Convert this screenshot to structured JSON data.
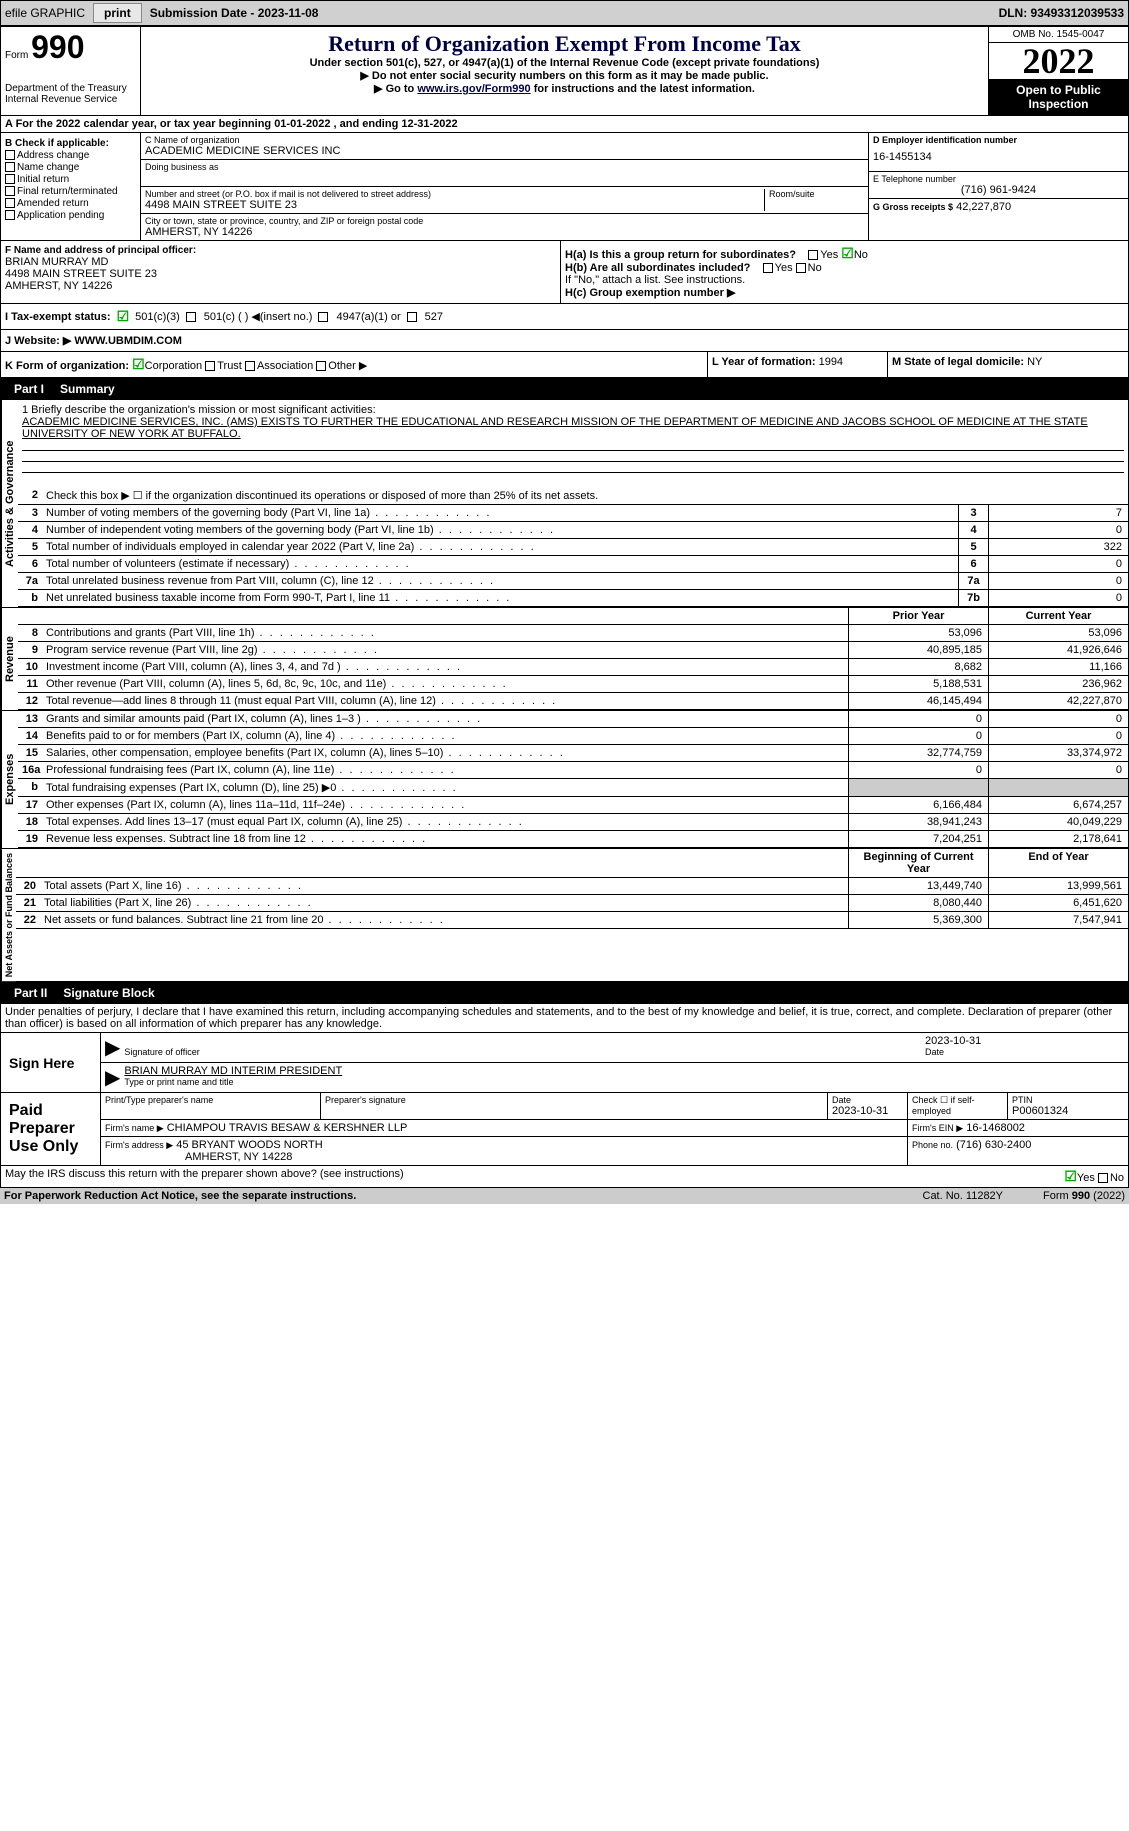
{
  "topbar": {
    "efile": "efile GRAPHIC",
    "print": "print",
    "sub_label": "Submission Date - 2023-11-08",
    "dln": "DLN: 93493312039533"
  },
  "header": {
    "form_prefix": "Form",
    "form_no": "990",
    "dept": "Department of the Treasury",
    "irs": "Internal Revenue Service",
    "title": "Return of Organization Exempt From Income Tax",
    "sub": "Under section 501(c), 527, or 4947(a)(1) of the Internal Revenue Code (except private foundations)",
    "ssn": "▶ Do not enter social security numbers on this form as it may be made public.",
    "goto": "▶ Go to",
    "goto_link": "www.irs.gov/Form990",
    "goto_suffix": "for instructions and the latest information.",
    "omb": "OMB No. 1545-0047",
    "year": "2022",
    "open": "Open to Public Inspection"
  },
  "cal": "A For the 2022 calendar year, or tax year beginning 01-01-2022    , and ending 12-31-2022",
  "checkb": {
    "label": "B Check if applicable:",
    "items": [
      "Address change",
      "Name change",
      "Initial return",
      "Final return/terminated",
      "Amended return",
      "Application pending"
    ]
  },
  "org": {
    "c_label": "C Name of organization",
    "name": "ACADEMIC MEDICINE SERVICES INC",
    "dba_label": "Doing business as",
    "addr_label": "Number and street (or P.O. box if mail is not delivered to street address)",
    "room_label": "Room/suite",
    "addr": "4498 MAIN STREET SUITE 23",
    "city_label": "City or town, state or province, country, and ZIP or foreign postal code",
    "city": "AMHERST, NY  14226"
  },
  "right": {
    "d_label": "D Employer identification number",
    "ein": "16-1455134",
    "e_label": "E Telephone number",
    "phone": "(716) 961-9424",
    "g_label": "G Gross receipts $",
    "gross": "42,227,870"
  },
  "officer": {
    "f_label": "F Name and address of principal officer:",
    "name": "BRIAN MURRAY MD",
    "addr1": "4498 MAIN STREET SUITE 23",
    "addr2": "AMHERST, NY  14226"
  },
  "h": {
    "a": "H(a)  Is this a group return for subordinates?",
    "b": "H(b)  Are all subordinates included?",
    "b_note": "If \"No,\" attach a list. See instructions.",
    "c": "H(c)  Group exemption number ▶",
    "yes": "Yes",
    "no": "No"
  },
  "status": {
    "i_label": "I    Tax-exempt status:",
    "c3": "501(c)(3)",
    "c": "501(c) (  ) ◀(insert no.)",
    "a1": "4947(a)(1) or",
    "s527": "527"
  },
  "website": {
    "j_label": "J   Website: ▶",
    "val": "WWW.UBMDIM.COM"
  },
  "formorg": {
    "k_label": "K Form of organization:",
    "corp": "Corporation",
    "trust": "Trust",
    "assoc": "Association",
    "other": "Other ▶",
    "l_label": "L Year of formation:",
    "l_val": "1994",
    "m_label": "M State of legal domicile:",
    "m_val": "NY"
  },
  "part1": {
    "label": "Part I",
    "title": "Summary"
  },
  "mission": {
    "q1": "1   Briefly describe the organization's mission or most significant activities:",
    "text": "ACADEMIC MEDICINE SERVICES, INC. (AMS) EXISTS TO FURTHER THE EDUCATIONAL AND RESEARCH MISSION OF THE DEPARTMENT OF MEDICINE AND JACOBS SCHOOL OF MEDICINE AT THE STATE UNIVERSITY OF NEW YORK AT BUFFALO."
  },
  "gov_rows": [
    {
      "n": "2",
      "t": "Check this box ▶ ☐ if the organization discontinued its operations or disposed of more than 25% of its net assets.",
      "box": "",
      "v": ""
    },
    {
      "n": "3",
      "t": "Number of voting members of the governing body (Part VI, line 1a)",
      "box": "3",
      "v": "7"
    },
    {
      "n": "4",
      "t": "Number of independent voting members of the governing body (Part VI, line 1b)",
      "box": "4",
      "v": "0"
    },
    {
      "n": "5",
      "t": "Total number of individuals employed in calendar year 2022 (Part V, line 2a)",
      "box": "5",
      "v": "322"
    },
    {
      "n": "6",
      "t": "Total number of volunteers (estimate if necessary)",
      "box": "6",
      "v": "0"
    },
    {
      "n": "7a",
      "t": "Total unrelated business revenue from Part VIII, column (C), line 12",
      "box": "7a",
      "v": "0"
    },
    {
      "n": "b",
      "t": "Net unrelated business taxable income from Form 990-T, Part I, line 11",
      "box": "7b",
      "v": "0"
    }
  ],
  "year_headers": {
    "prior": "Prior Year",
    "current": "Current Year",
    "begin": "Beginning of Current Year",
    "end": "End of Year"
  },
  "revenue_rows": [
    {
      "n": "8",
      "t": "Contributions and grants (Part VIII, line 1h)",
      "p": "53,096",
      "c": "53,096"
    },
    {
      "n": "9",
      "t": "Program service revenue (Part VIII, line 2g)",
      "p": "40,895,185",
      "c": "41,926,646"
    },
    {
      "n": "10",
      "t": "Investment income (Part VIII, column (A), lines 3, 4, and 7d )",
      "p": "8,682",
      "c": "11,166"
    },
    {
      "n": "11",
      "t": "Other revenue (Part VIII, column (A), lines 5, 6d, 8c, 9c, 10c, and 11e)",
      "p": "5,188,531",
      "c": "236,962"
    },
    {
      "n": "12",
      "t": "Total revenue—add lines 8 through 11 (must equal Part VIII, column (A), line 12)",
      "p": "46,145,494",
      "c": "42,227,870"
    }
  ],
  "expense_rows": [
    {
      "n": "13",
      "t": "Grants and similar amounts paid (Part IX, column (A), lines 1–3 )",
      "p": "0",
      "c": "0"
    },
    {
      "n": "14",
      "t": "Benefits paid to or for members (Part IX, column (A), line 4)",
      "p": "0",
      "c": "0"
    },
    {
      "n": "15",
      "t": "Salaries, other compensation, employee benefits (Part IX, column (A), lines 5–10)",
      "p": "32,774,759",
      "c": "33,374,972"
    },
    {
      "n": "16a",
      "t": "Professional fundraising fees (Part IX, column (A), line 11e)",
      "p": "0",
      "c": "0"
    },
    {
      "n": "b",
      "t": "Total fundraising expenses (Part IX, column (D), line 25) ▶0",
      "p": "shaded",
      "c": "shaded"
    },
    {
      "n": "17",
      "t": "Other expenses (Part IX, column (A), lines 11a–11d, 11f–24e)",
      "p": "6,166,484",
      "c": "6,674,257"
    },
    {
      "n": "18",
      "t": "Total expenses. Add lines 13–17 (must equal Part IX, column (A), line 25)",
      "p": "38,941,243",
      "c": "40,049,229"
    },
    {
      "n": "19",
      "t": "Revenue less expenses. Subtract line 18 from line 12",
      "p": "7,204,251",
      "c": "2,178,641"
    }
  ],
  "net_rows": [
    {
      "n": "20",
      "t": "Total assets (Part X, line 16)",
      "p": "13,449,740",
      "c": "13,999,561"
    },
    {
      "n": "21",
      "t": "Total liabilities (Part X, line 26)",
      "p": "8,080,440",
      "c": "6,451,620"
    },
    {
      "n": "22",
      "t": "Net assets or fund balances. Subtract line 21 from line 20",
      "p": "5,369,300",
      "c": "7,547,941"
    }
  ],
  "part2": {
    "label": "Part II",
    "title": "Signature Block"
  },
  "penalties": "Under penalties of perjury, I declare that I have examined this return, including accompanying schedules and statements, and to the best of my knowledge and belief, it is true, correct, and complete. Declaration of preparer (other than officer) is based on all information of which preparer has any knowledge.",
  "sign": {
    "here": "Sign Here",
    "sig_officer": "Signature of officer",
    "date": "Date",
    "date_val": "2023-10-31",
    "name_title": "BRIAN MURRAY MD INTERIM PRESIDENT",
    "type_name": "Type or print name and title"
  },
  "prep": {
    "label": "Paid Preparer Use Only",
    "print_label": "Print/Type preparer's name",
    "sig_label": "Preparer's signature",
    "date_label": "Date",
    "date_val": "2023-10-31",
    "check_label": "Check ☐ if self-employed",
    "ptin_label": "PTIN",
    "ptin": "P00601324",
    "firm_label": "Firm's name    ▶",
    "firm": "CHIAMPOU TRAVIS BESAW & KERSHNER LLP",
    "ein_label": "Firm's EIN ▶",
    "ein": "16-1468002",
    "addr_label": "Firm's address ▶",
    "addr1": "45 BRYANT WOODS NORTH",
    "addr2": "AMHERST, NY  14228",
    "phone_label": "Phone no.",
    "phone": "(716) 630-2400"
  },
  "discuss": "May the IRS discuss this return with the preparer shown above? (see instructions)",
  "footer": {
    "paperwork": "For Paperwork Reduction Act Notice, see the separate instructions.",
    "cat": "Cat. No. 11282Y",
    "form": "Form 990 (2022)"
  },
  "sections": {
    "gov": "Activities & Governance",
    "rev": "Revenue",
    "exp": "Expenses",
    "net": "Net Assets or Fund Balances"
  }
}
